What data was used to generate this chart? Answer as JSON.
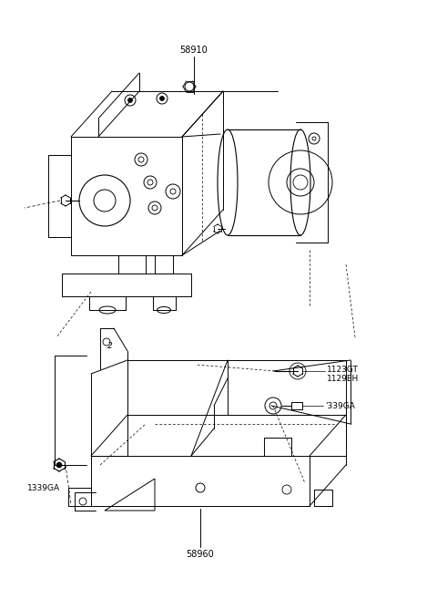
{
  "background_color": "#ffffff",
  "fig_width": 4.8,
  "fig_height": 6.57,
  "dpi": 100,
  "text_color": "#000000",
  "label_58910": "58910",
  "label_58960": "58960",
  "label_1123GT": "1123GT",
  "label_1129EH": "1129EH",
  "label_339GA": "'339GA",
  "label_1339GA": "1339GA",
  "label_2": "2"
}
